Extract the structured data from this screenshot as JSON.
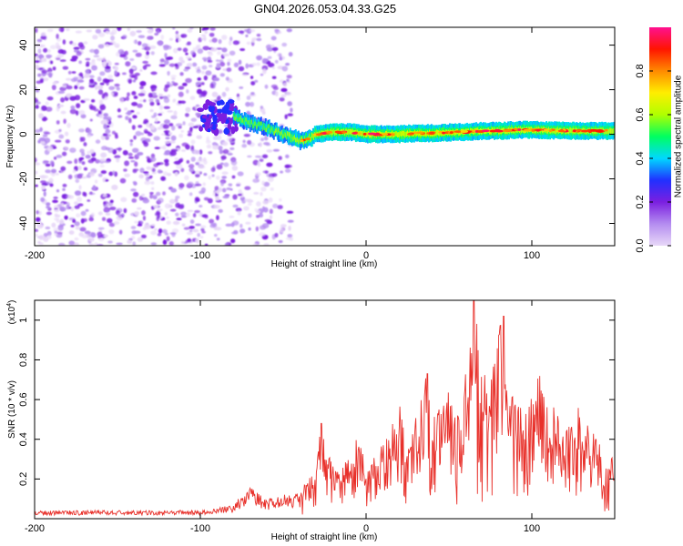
{
  "chart_data": [
    {
      "type": "heatmap",
      "title": "GN04.2026.053.04.33.G25",
      "xlabel": "Height of straight line (km)",
      "ylabel": "Frequency (Hz)",
      "xlim": [
        -200,
        150
      ],
      "ylim": [
        -50,
        48
      ],
      "xticks": [
        -200,
        -100,
        0,
        100
      ],
      "yticks": [
        -40,
        -20,
        0,
        20,
        40
      ],
      "colorbar": {
        "label": "Normalized spectral amplitude",
        "range": [
          0,
          1
        ],
        "ticks": [
          0.0,
          0.2,
          0.4,
          0.6,
          0.8
        ],
        "tick_labels": [
          "0.0",
          "0.2",
          "0.4",
          "0.6",
          "0.8"
        ],
        "colormap": "rainbow",
        "stops": [
          "#e8d8f8",
          "#b48cf0",
          "#7b1fe0",
          "#2030ff",
          "#00d8ff",
          "#00ff60",
          "#b0ff00",
          "#ffee00",
          "#ff8a00",
          "#ff1500",
          "#ff1090"
        ]
      },
      "frequency_ridge": {
        "x": [
          -80,
          -70,
          -60,
          -50,
          -40,
          -35,
          -30,
          -20,
          -10,
          0,
          10,
          20,
          30,
          40,
          50,
          60,
          70,
          80,
          90,
          100,
          110,
          120,
          130,
          140,
          150
        ],
        "y": [
          8,
          5,
          3,
          0,
          -3,
          -2,
          0,
          1,
          1,
          0,
          0,
          0,
          0.5,
          0.5,
          0.8,
          1,
          1.5,
          1.5,
          2,
          2,
          1.8,
          1.6,
          1.5,
          1.5,
          1.5
        ]
      },
      "noise_region_x": [
        -200,
        -45
      ]
    },
    {
      "type": "line",
      "title": "",
      "xlabel": "Height of straight line (km)",
      "ylabel": "SNR (10 * v/v)",
      "y_multiplier": "(x10",
      "y_multiplier_exp": "4",
      "y_multiplier_close": ")",
      "xlim": [
        -200,
        150
      ],
      "ylim": [
        0,
        1.1
      ],
      "xticks": [
        -200,
        -100,
        0,
        100
      ],
      "yticks": [
        0.2,
        0.4,
        0.6,
        0.8,
        1
      ],
      "series": [
        {
          "name": "SNR",
          "color": "#e8302a",
          "x": [
            -200,
            -180,
            -160,
            -140,
            -120,
            -100,
            -90,
            -80,
            -75,
            -70,
            -65,
            -60,
            -55,
            -50,
            -45,
            -40,
            -35,
            -30,
            -27,
            -25,
            -20,
            -15,
            -10,
            -5,
            0,
            5,
            10,
            15,
            20,
            25,
            30,
            35,
            40,
            45,
            50,
            55,
            60,
            63,
            65,
            70,
            75,
            80,
            83,
            85,
            90,
            95,
            100,
            105,
            110,
            115,
            120,
            125,
            130,
            135,
            140,
            145,
            150
          ],
          "values": [
            0.03,
            0.03,
            0.03,
            0.03,
            0.03,
            0.03,
            0.04,
            0.05,
            0.09,
            0.12,
            0.09,
            0.07,
            0.08,
            0.08,
            0.12,
            0.13,
            0.19,
            0.26,
            0.48,
            0.35,
            0.27,
            0.24,
            0.3,
            0.42,
            0.24,
            0.3,
            0.36,
            0.44,
            0.56,
            0.33,
            0.5,
            0.73,
            0.47,
            0.56,
            0.62,
            0.49,
            0.71,
            0.93,
            1.1,
            0.75,
            0.72,
            1.02,
            0.8,
            0.6,
            0.59,
            0.5,
            0.64,
            0.69,
            0.54,
            0.55,
            0.4,
            0.55,
            0.52,
            0.44,
            0.38,
            0.28,
            0.3
          ]
        }
      ]
    }
  ]
}
